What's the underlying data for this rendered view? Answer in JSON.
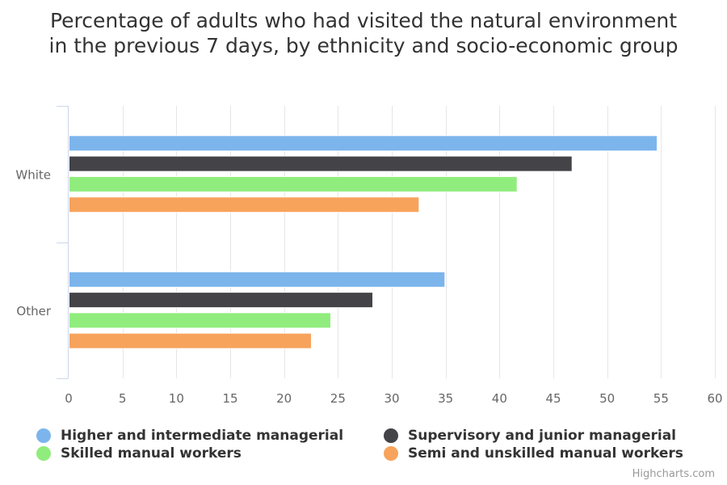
{
  "chart_data": {
    "type": "bar",
    "orientation": "horizontal",
    "title": "Percentage of adults who had visited the natural environment in the previous 7 days, by ethnicity and socio-economic group",
    "categories": [
      "White",
      "Other"
    ],
    "series": [
      {
        "name": "Higher and intermediate managerial",
        "color": "#7cb5ec",
        "values": [
          54.6,
          34.9
        ]
      },
      {
        "name": "Supervisory and junior managerial",
        "color": "#434348",
        "values": [
          46.7,
          28.2
        ]
      },
      {
        "name": "Skilled manual workers",
        "color": "#90ed7d",
        "values": [
          41.6,
          24.3
        ]
      },
      {
        "name": "Semi and unskilled manual workers",
        "color": "#f7a35c",
        "values": [
          32.5,
          22.5
        ]
      }
    ],
    "xlim": [
      0,
      60
    ],
    "ticks": [
      0,
      5,
      10,
      15,
      20,
      25,
      30,
      35,
      40,
      45,
      50,
      55,
      60
    ],
    "grid": true,
    "legend_position": "bottom"
  },
  "credits": "Highcharts.com"
}
